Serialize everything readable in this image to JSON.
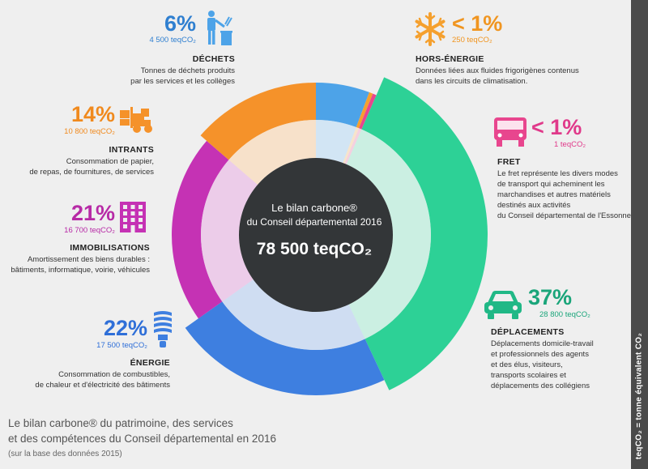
{
  "center": {
    "title_line1": "Le bilan carbone®",
    "title_line2": "du Conseil départemental 2016",
    "total": "78 500 teqCO₂"
  },
  "chart_data": {
    "type": "pie",
    "title": "Le bilan carbone® du Conseil départemental 2016",
    "total": "78 500 teqCO₂",
    "unit": "teqCO₂",
    "series": [
      {
        "name": "DÉCHETS",
        "value": 4500,
        "percent": "6%",
        "value_label": "4 500 teqCO₂",
        "color": "#4da3e8",
        "description": [
          "Tonnes de déchets produits",
          "par les services et les collèges"
        ]
      },
      {
        "name": "HORS-ÉNERGIE",
        "value": 250,
        "percent": "< 1%",
        "value_label": "250 teqCO₂",
        "color": "#f5a02e",
        "description": [
          "Données liées aux fluides frigorigènes contenus",
          "dans les circuits de climatisation."
        ]
      },
      {
        "name": "FRET",
        "value": 1,
        "percent": "< 1%",
        "value_label": "1 teqCO₂",
        "color": "#e8468e",
        "description": [
          "Le fret représente les divers modes",
          "de transport qui acheminent les",
          "marchandises et autres matériels",
          "destinés aux activités",
          "du Conseil départemental de l'Essonne"
        ]
      },
      {
        "name": "DÉPLACEMENTS",
        "value": 28800,
        "percent": "37%",
        "value_label": "28 800 teqCO₂",
        "color": "#2dd196",
        "description": [
          "Déplacements domicile-travail",
          "et professionnels des agents",
          "et des élus, visiteurs,",
          "transports scolaires et",
          "déplacements des collégiens"
        ]
      },
      {
        "name": "ÉNERGIE",
        "value": 17500,
        "percent": "22%",
        "value_label": "17 500 teqCO₂",
        "color": "#3e7fe0",
        "description": [
          "Consommation de combustibles,",
          "de chaleur et d'électricité des bâtiments"
        ]
      },
      {
        "name": "IMMOBILISATIONS",
        "value": 16700,
        "percent": "21%",
        "value_label": "16 700 teqCO₂",
        "color": "#c532b4",
        "description": [
          "Amortissement des biens durables :",
          "bâtiments, informatique, voirie, véhicules"
        ]
      },
      {
        "name": "INTRANTS",
        "value": 10800,
        "percent": "14%",
        "value_label": "10 800 teqCO₂",
        "color": "#f5922a",
        "description": [
          "Consommation de papier,",
          "de repas, de fournitures, de services"
        ]
      }
    ]
  },
  "footer": {
    "line1": "Le bilan carbone® du patrimoine, des services",
    "line2": "et des compétences du Conseil départemental en 2016",
    "line3": "(sur la base des données 2015)"
  },
  "sidebar": {
    "text": "teqCO₂ = tonne équivalent CO₂"
  },
  "icons": {
    "dechets": "trash-person-icon",
    "hors_energie": "snowflake-icon",
    "fret": "truck-icon",
    "intrants": "forklift-icon",
    "immobilisations": "building-icon",
    "deplacements": "car-icon",
    "energie": "bulb-icon"
  }
}
